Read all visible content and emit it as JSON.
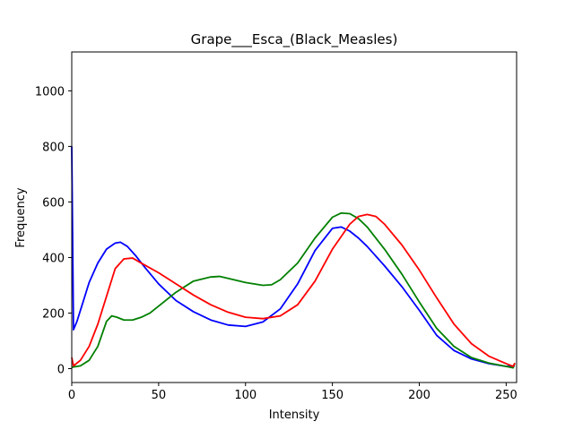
{
  "chart_data": {
    "type": "line",
    "title": "Grape___Esca_(Black_Measles)",
    "xlabel": "Intensity",
    "ylabel": "Frequency",
    "xlim": [
      0,
      256
    ],
    "ylim": [
      -50,
      1140
    ],
    "xticks": [
      0,
      50,
      100,
      150,
      200,
      250
    ],
    "yticks": [
      0,
      200,
      400,
      600,
      800,
      1000
    ],
    "grid": false,
    "legend": "none",
    "series": [
      {
        "color": "#0000ff",
        "x": [
          0,
          1,
          3,
          6,
          10,
          15,
          20,
          25,
          28,
          32,
          37,
          42,
          50,
          60,
          70,
          80,
          90,
          100,
          110,
          120,
          130,
          140,
          150,
          155,
          160,
          165,
          170,
          180,
          190,
          200,
          210,
          220,
          230,
          240,
          250,
          255
        ],
        "y": [
          800,
          140,
          170,
          230,
          310,
          380,
          430,
          452,
          455,
          440,
          405,
          365,
          305,
          245,
          205,
          175,
          157,
          152,
          168,
          215,
          305,
          425,
          505,
          510,
          495,
          470,
          440,
          370,
          295,
          210,
          120,
          65,
          35,
          18,
          8,
          10
        ]
      },
      {
        "color": "#008000",
        "x": [
          0,
          5,
          10,
          15,
          20,
          23,
          26,
          30,
          35,
          40,
          45,
          50,
          60,
          70,
          80,
          85,
          90,
          100,
          110,
          115,
          120,
          130,
          140,
          150,
          155,
          160,
          165,
          170,
          180,
          190,
          200,
          210,
          220,
          230,
          240,
          250,
          254,
          255
        ],
        "y": [
          5,
          10,
          30,
          80,
          170,
          190,
          185,
          175,
          175,
          185,
          200,
          225,
          275,
          315,
          330,
          332,
          325,
          310,
          300,
          302,
          320,
          380,
          470,
          545,
          560,
          558,
          540,
          510,
          430,
          340,
          240,
          145,
          80,
          40,
          20,
          8,
          3,
          20
        ]
      },
      {
        "color": "#ff0000",
        "x": [
          0,
          1,
          5,
          10,
          15,
          20,
          25,
          30,
          35,
          40,
          50,
          60,
          70,
          80,
          90,
          100,
          110,
          120,
          130,
          140,
          150,
          160,
          165,
          170,
          175,
          180,
          190,
          200,
          210,
          220,
          230,
          240,
          250,
          254,
          255
        ],
        "y": [
          40,
          10,
          30,
          80,
          160,
          260,
          360,
          395,
          398,
          380,
          345,
          305,
          265,
          230,
          203,
          185,
          180,
          190,
          230,
          315,
          430,
          520,
          548,
          555,
          548,
          520,
          445,
          355,
          255,
          160,
          90,
          45,
          18,
          8,
          20
        ]
      }
    ]
  }
}
